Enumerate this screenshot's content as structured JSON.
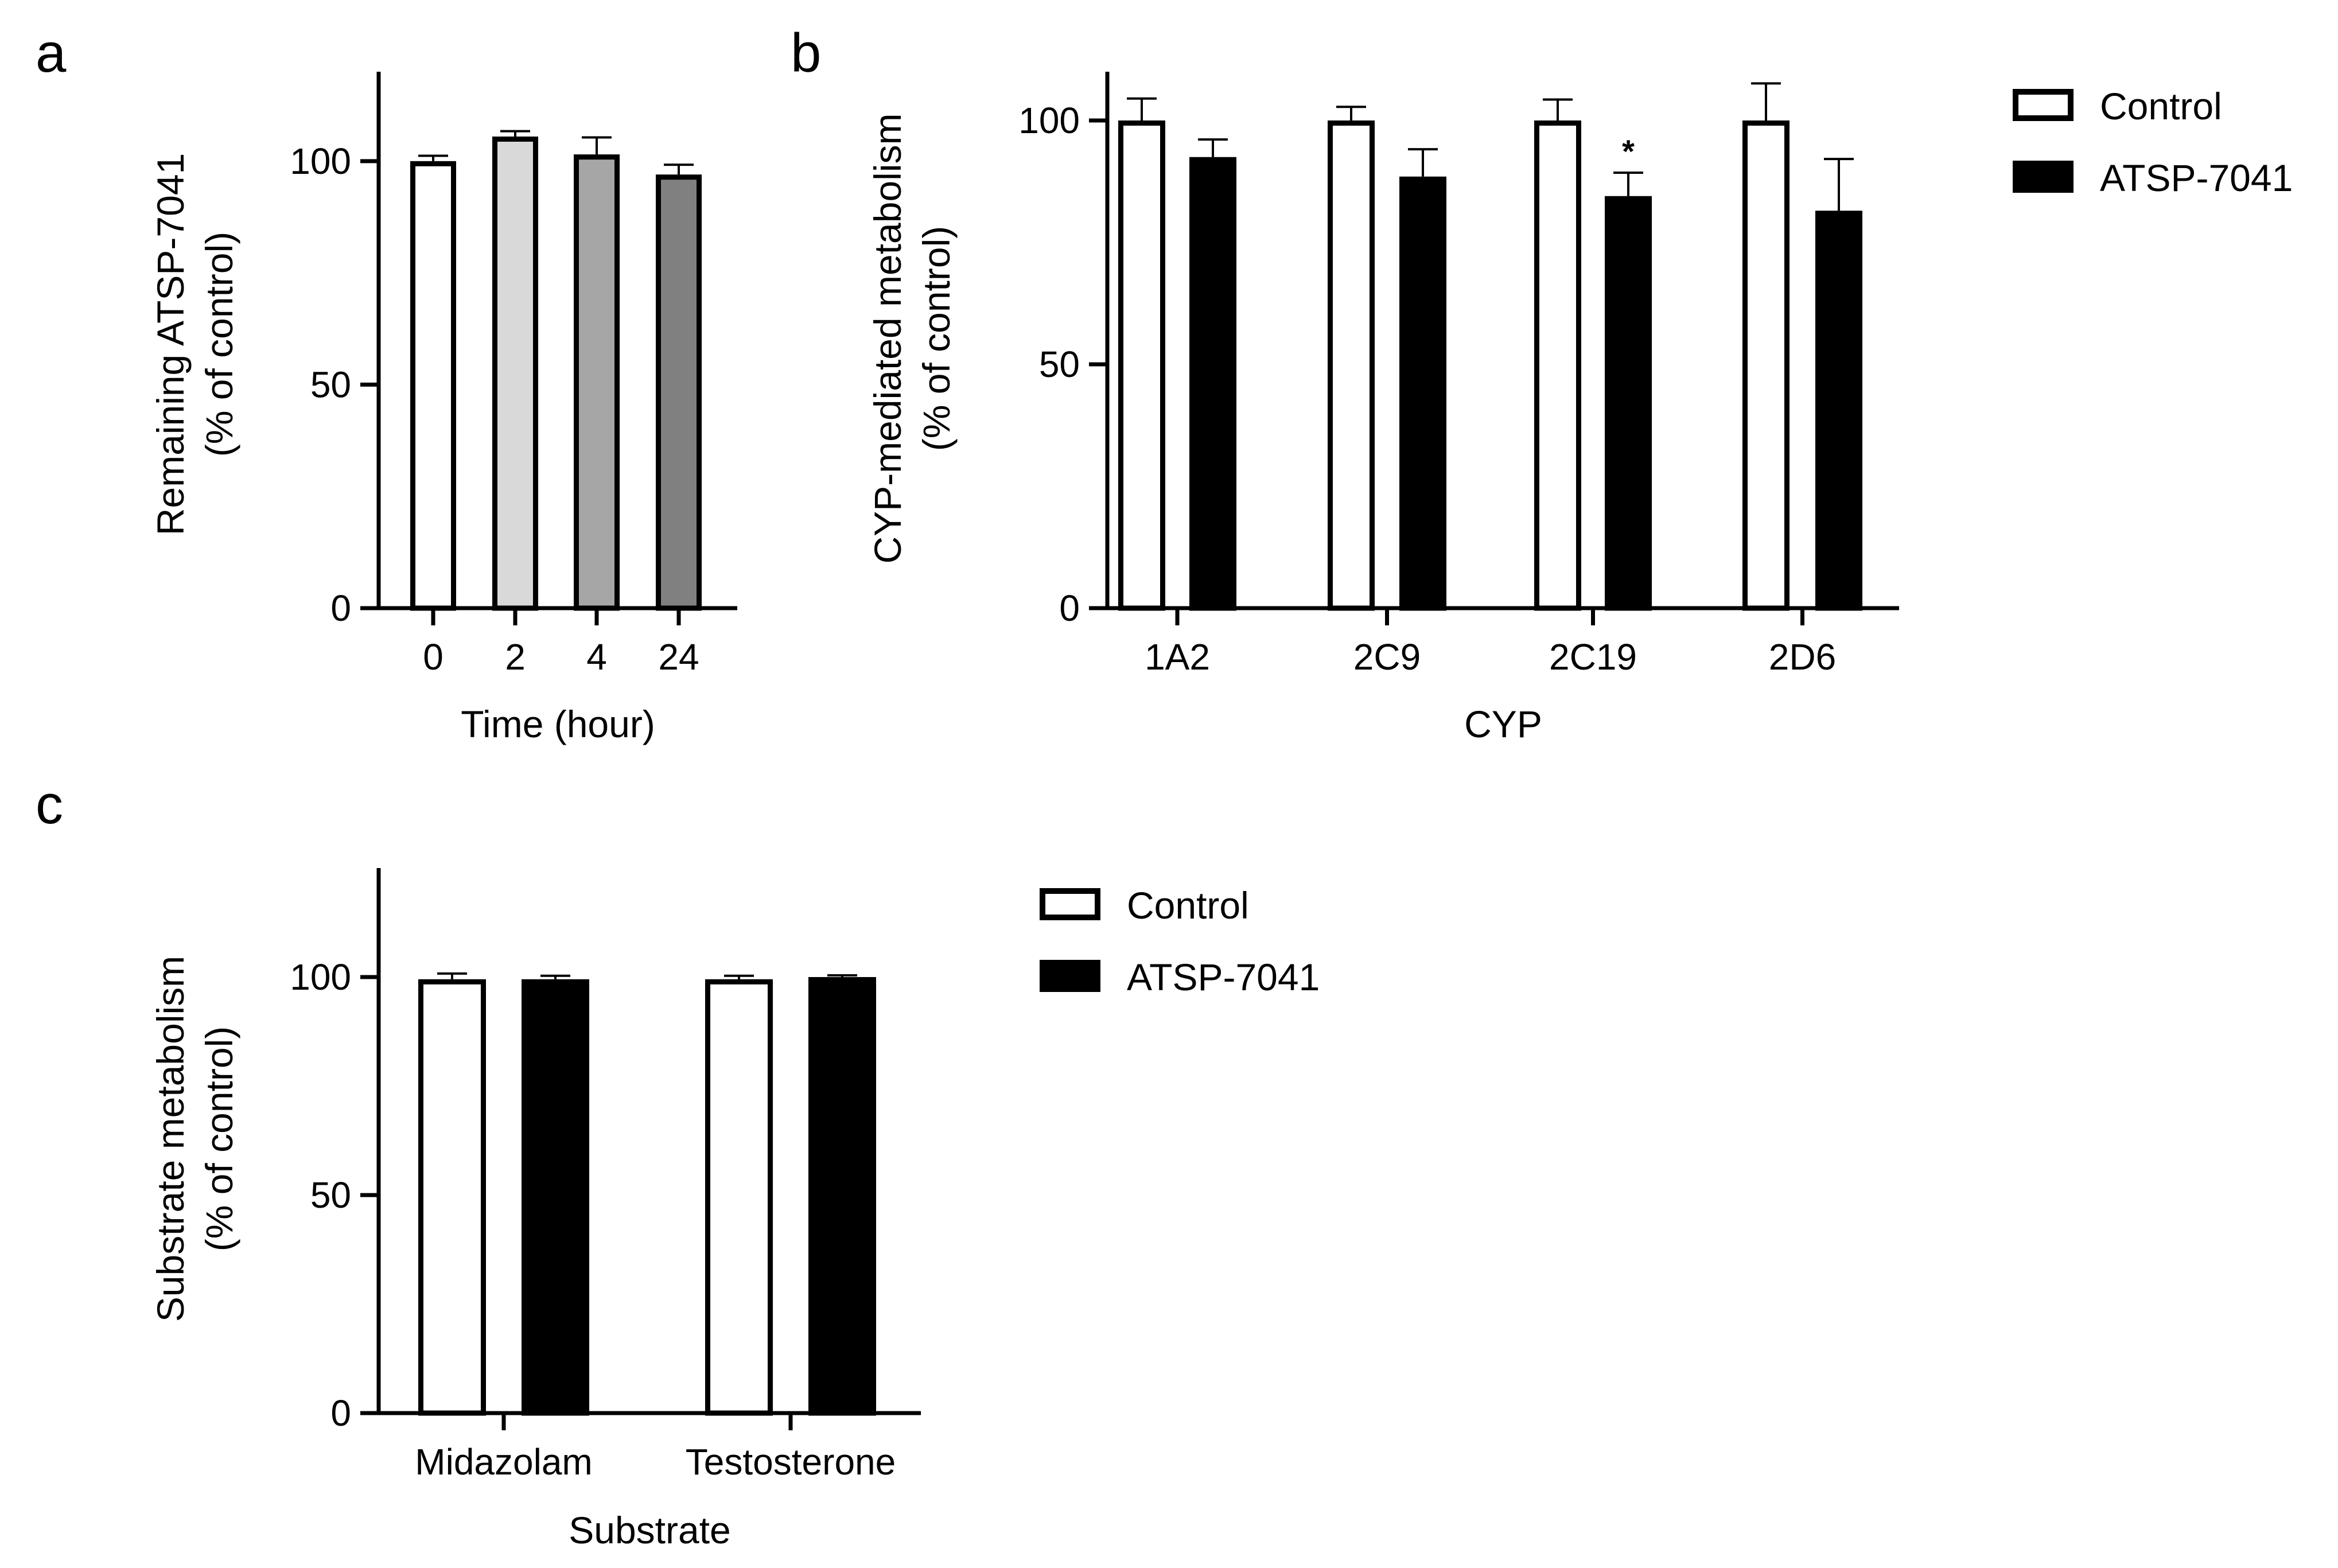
{
  "chart_data": [
    {
      "panel": "a",
      "type": "bar",
      "categories": [
        "0",
        "2",
        "4",
        "24"
      ],
      "series": [
        {
          "name": "Remaining ATSP-7041",
          "values": [
            100,
            105.5,
            101.5,
            97
          ],
          "errors": [
            1.2,
            1.2,
            3.8,
            2.2
          ]
        }
      ],
      "bar_colors": [
        "#ffffff",
        "#d9d9d9",
        "#a6a6a6",
        "#808080"
      ],
      "xlabel": "Time (hour)",
      "ylabel_lines": [
        "Remaining ATSP-7041",
        "(% of control)"
      ],
      "ylim": [
        0,
        120
      ],
      "yticks": [
        0,
        50,
        100
      ],
      "legend": false,
      "grid": false
    },
    {
      "panel": "b",
      "type": "bar",
      "categories": [
        "1A2",
        "2C9",
        "2C19",
        "2D6"
      ],
      "series": [
        {
          "name": "Control",
          "values": [
            100,
            100,
            100,
            100
          ],
          "errors": [
            4.5,
            2.8,
            4.3,
            7.6
          ]
        },
        {
          "name": "ATSP-7041",
          "values": [
            92.5,
            88.5,
            84.5,
            81.5
          ],
          "errors": [
            3.6,
            5.6,
            4.8,
            10.6
          ]
        }
      ],
      "annotations": [
        {
          "category": "2C19",
          "series": "ATSP-7041",
          "text": "*"
        }
      ],
      "xlabel": "CYP",
      "ylabel_lines": [
        "CYP-mediated metabolism",
        "(% of control)"
      ],
      "ylim": [
        0,
        110
      ],
      "yticks": [
        0,
        50,
        100
      ],
      "legend": true,
      "legend_position": "top-right",
      "grid": false
    },
    {
      "panel": "c",
      "type": "bar",
      "categories": [
        "Midazolam",
        "Testosterone"
      ],
      "series": [
        {
          "name": "Control",
          "values": [
            99.5,
            99.5
          ],
          "errors": [
            1.3,
            0.8
          ]
        },
        {
          "name": "ATSP-7041",
          "values": [
            99.5,
            100
          ],
          "errors": [
            0.8,
            0.4
          ]
        }
      ],
      "xlabel": "Substrate",
      "ylabel_lines": [
        "Substrate metabolism",
        "(% of control)"
      ],
      "ylim": [
        0,
        125
      ],
      "yticks": [
        0,
        50,
        100
      ],
      "legend": true,
      "legend_position": "right",
      "grid": false
    }
  ],
  "colors": {
    "control": "#ffffff",
    "atsp": "#000000",
    "stroke": "#000000"
  }
}
